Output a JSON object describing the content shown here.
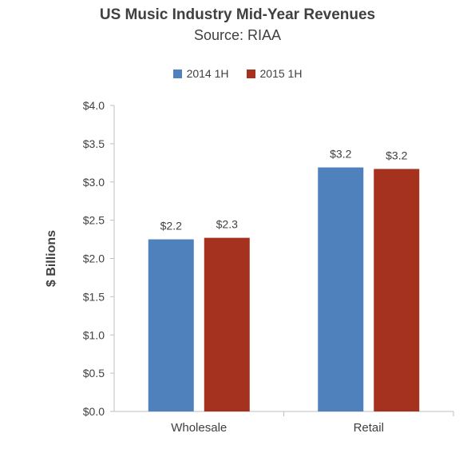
{
  "chart_data": {
    "type": "bar",
    "title": "US Music Industry Mid-Year Revenues",
    "subtitle": "Source: RIAA",
    "xlabel": "",
    "ylabel": "$ Billions",
    "categories": [
      "Wholesale",
      "Retail"
    ],
    "series": [
      {
        "name": "2014 1H",
        "color": "#4f81bd",
        "values": [
          2.25,
          3.19
        ],
        "labels": [
          "$2.2",
          "$3.2"
        ]
      },
      {
        "name": "2015 1H",
        "color": "#a5321e",
        "values": [
          2.27,
          3.17
        ],
        "labels": [
          "$2.3",
          "$3.2"
        ]
      }
    ],
    "ylim": [
      0,
      4.0
    ],
    "yticks": [
      "$0.0",
      "$0.5",
      "$1.0",
      "$1.5",
      "$2.0",
      "$2.5",
      "$3.0",
      "$3.5",
      "$4.0"
    ],
    "grid": false,
    "legend_position": "top"
  }
}
